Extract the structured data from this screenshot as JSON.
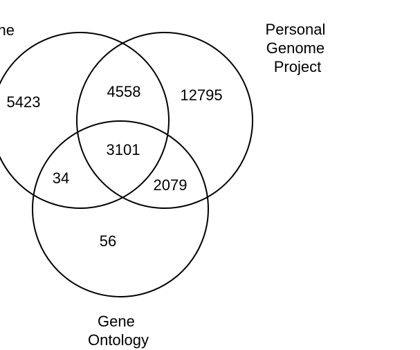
{
  "diagram": {
    "type": "venn",
    "sets": {
      "left": {
        "label_lines": [
          "ne"
        ]
      },
      "right": {
        "label_lines": [
          "Personal",
          "Genome",
          "Project"
        ]
      },
      "bottom": {
        "label_lines": [
          "Gene",
          "Ontology"
        ]
      }
    },
    "regions": {
      "left_only": "5423",
      "left_right": "4558",
      "right_only": "12795",
      "all_three": "3101",
      "left_bottom": "34",
      "right_bottom": "2079",
      "bottom_only": "56"
    }
  }
}
